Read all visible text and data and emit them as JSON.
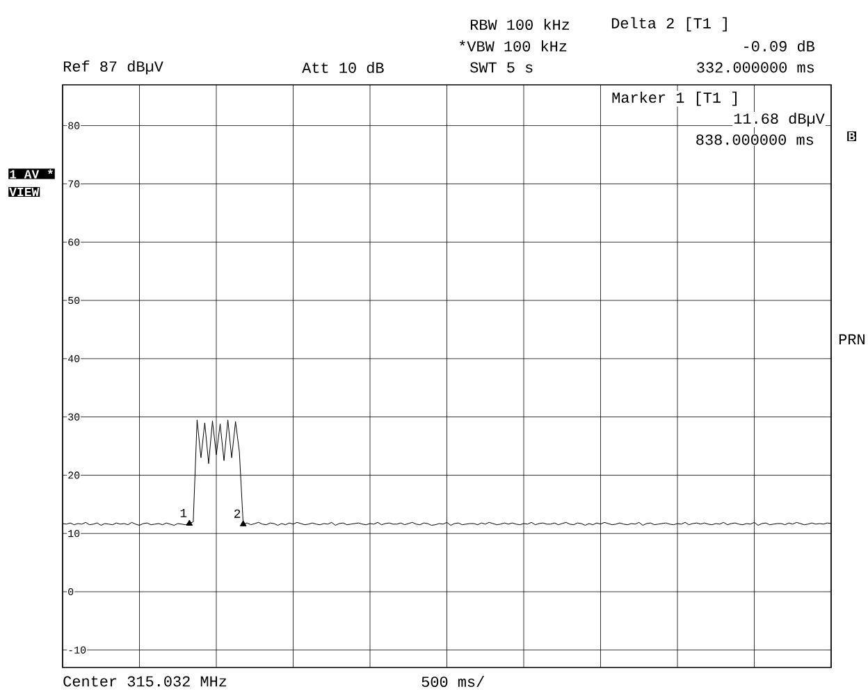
{
  "chart_data": {
    "type": "line",
    "annotations": [
      "RBW 100 kHz",
      "*VBW 100 kHz",
      "SWT 5 s",
      "Delta 2 [T1 ]",
      "-0.09 dB",
      "332.000000 ms",
      "Ref 87 dBµV",
      "Att 10 dB",
      "Marker 1 [T1 ]",
      "11.68 dBµV",
      "838.000000 ms",
      "1 AV *",
      "VIEW",
      "B",
      "PRN",
      "Center 315.032 MHz",
      "500 ms/",
      "1",
      "2"
    ],
    "categories": [
      null,
      null,
      null,
      null,
      null,
      null,
      null,
      null,
      null,
      null,
      null,
      null,
      null,
      null,
      null,
      null,
      null,
      null,
      null,
      null,
      null,
      null,
      null,
      null,
      null,
      null,
      null,
      null,
      null,
      null,
      null,
      null,
      null,
      null,
      null,
      null,
      null,
      null,
      null,
      null,
      null,
      null,
      null,
      null,
      null,
      null,
      null,
      null,
      null,
      null,
      null,
      null,
      null,
      null,
      null,
      null,
      null,
      null,
      null,
      null,
      null,
      null,
      null,
      null,
      null,
      null,
      null,
      null,
      null,
      null,
      null,
      null,
      null,
      null,
      null,
      null,
      null,
      null,
      null,
      null,
      null,
      null,
      null,
      null,
      null,
      null,
      null,
      null,
      null,
      null,
      null,
      null,
      null,
      null,
      null,
      null,
      null,
      null,
      null,
      null,
      null,
      null,
      null,
      null,
      null,
      null,
      null,
      null,
      null,
      null,
      null,
      null,
      null,
      null,
      null,
      null,
      null,
      null,
      null,
      null,
      null,
      null,
      null,
      null,
      null,
      null,
      null,
      null,
      null,
      null,
      null,
      null,
      null,
      null,
      null,
      null,
      null,
      null,
      null,
      null,
      null,
      null,
      null,
      null,
      null,
      null,
      null,
      null,
      null,
      null,
      null,
      null,
      null,
      null,
      null,
      null,
      null,
      null,
      null,
      null,
      null,
      null,
      null,
      null,
      null,
      null,
      null,
      null,
      null,
      null,
      null,
      null,
      null,
      null,
      null,
      null,
      null,
      null,
      null,
      null,
      null,
      null,
      null,
      null,
      null,
      null,
      null,
      null,
      null,
      null,
      null,
      null,
      null,
      null,
      null,
      null,
      null,
      null,
      null,
      null,
      null
    ],
    "series": [
      {
        "color": "#000000",
        "values": [
          11.7,
          11.6,
          11.8,
          11.5,
          11.7,
          11.6,
          11.9,
          11.5,
          11.6,
          11.8,
          11.4,
          11.7,
          11.6,
          11.5,
          11.8,
          11.6,
          11.7,
          11.5,
          11.9,
          11.6,
          11.4,
          11.7,
          11.8,
          11.5,
          11.6,
          11.7,
          11.5,
          11.8,
          11.6,
          11.4,
          11.7,
          11.6,
          11.5,
          11.7,
          12,
          29.5,
          23,
          29,
          22,
          29.3,
          23.5,
          28.8,
          22.5,
          29.5,
          23,
          29.2,
          24,
          11.6,
          11.8,
          11.5,
          11.7,
          11.9,
          11.6,
          11.5,
          11.8,
          11.7,
          11.4,
          11.7,
          11.5,
          11.8,
          11.6,
          11.9,
          11.7,
          11.5,
          11.6,
          11.8,
          11.6,
          11.5,
          11.7,
          11.6,
          11.9,
          11.4,
          11.7,
          11.8,
          11.5,
          11.6,
          11.7,
          11.8,
          11.6,
          11.5,
          11.7,
          11.6,
          11.9,
          11.5,
          11.7,
          11.8,
          11.6,
          11.6,
          11.8,
          11.5,
          11.7,
          11.9,
          11.6,
          11.5,
          11.8,
          11.7,
          11.4,
          11.5,
          11.7,
          11.6,
          11.9,
          11.4,
          11.7,
          11.8,
          11.5,
          11.6,
          11.7,
          11.7,
          11.5,
          11.8,
          11.6,
          11.9,
          11.7,
          11.5,
          11.6,
          11.8,
          11.6,
          11.8,
          11.6,
          11.5,
          11.7,
          11.6,
          11.9,
          11.5,
          11.7,
          11.8,
          11.6,
          11.6,
          11.8,
          11.5,
          11.7,
          11.9,
          11.6,
          11.5,
          11.8,
          11.7,
          11.4,
          11.7,
          11.5,
          11.8,
          11.6,
          11.9,
          11.7,
          11.5,
          11.6,
          11.8,
          11.6,
          11.5,
          11.7,
          11.6,
          11.9,
          11.4,
          11.7,
          11.8,
          11.5,
          11.6,
          11.7,
          11.8,
          11.6,
          11.5,
          11.7,
          11.6,
          11.9,
          11.5,
          11.7,
          11.8,
          11.6,
          11.8,
          11.6,
          11.5,
          11.7,
          11.6,
          11.9,
          11.5,
          11.7,
          11.8,
          11.6,
          11.5,
          11.7,
          11.6,
          11.9,
          11.4,
          11.7,
          11.8,
          11.5,
          11.6,
          11.7,
          11.7,
          11.5,
          11.8,
          11.6,
          11.9,
          11.7,
          11.5,
          11.6,
          11.8,
          11.6,
          11.7,
          11.6,
          11.8,
          11.7
        ]
      },
      {
        "type": "scatter",
        "marker": "triangle",
        "color": "#000000",
        "values": [
          null,
          null,
          null,
          null,
          null,
          null,
          null,
          null,
          null,
          null,
          null,
          null,
          null,
          null,
          null,
          null,
          null,
          null,
          null,
          null,
          null,
          null,
          null,
          null,
          null,
          null,
          null,
          null,
          null,
          null,
          null,
          null,
          null,
          11.7,
          null,
          null,
          null,
          null,
          null,
          null,
          null,
          null,
          null,
          null,
          null,
          null,
          null,
          11.6,
          null,
          null,
          null,
          null,
          null,
          null,
          null,
          null,
          null,
          null,
          null,
          null,
          null,
          null,
          null,
          null,
          null,
          null,
          null,
          null,
          null,
          null,
          null,
          null,
          null,
          null,
          null,
          null,
          null,
          null,
          null,
          null,
          null,
          null,
          null,
          null,
          null,
          null,
          null,
          null,
          null,
          null,
          null,
          null,
          null,
          null,
          null,
          null,
          null,
          null,
          null,
          null,
          null,
          null,
          null,
          null,
          null,
          null,
          null,
          null,
          null,
          null,
          null,
          null,
          null,
          null,
          null,
          null,
          null,
          null,
          null,
          null,
          null,
          null,
          null,
          null,
          null,
          null,
          null,
          null,
          null,
          null,
          null,
          null,
          null,
          null,
          null,
          null,
          null,
          null,
          null,
          null,
          null,
          null,
          null,
          null,
          null,
          null,
          null,
          null,
          null,
          null,
          null,
          null,
          null,
          null,
          null,
          null,
          null,
          null,
          null,
          null,
          null,
          null,
          null,
          null,
          null,
          null,
          null,
          null,
          null,
          null,
          null,
          null,
          null,
          null,
          null,
          null,
          null,
          null,
          null,
          null,
          null,
          null,
          null,
          null,
          null,
          null,
          null,
          null,
          null,
          null,
          null,
          null,
          null,
          null,
          null,
          null,
          null,
          null,
          null,
          null,
          null
        ]
      }
    ],
    "ylim": [
      -13,
      87
    ],
    "yticks": [
      -10,
      0,
      10,
      20,
      30,
      40,
      50,
      60,
      70,
      80
    ],
    "grid": true,
    "tick_labels": "y"
  }
}
